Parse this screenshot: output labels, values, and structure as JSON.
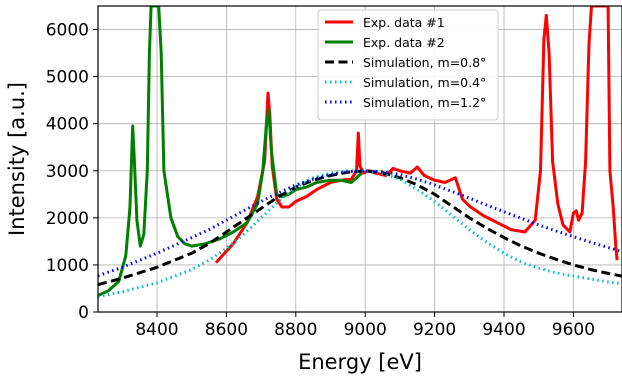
{
  "chart_data": {
    "type": "line",
    "title": "",
    "xlabel": "Energy [eV]",
    "ylabel": "Intensity [a.u.]",
    "xlim": [
      8230,
      9740
    ],
    "ylim": [
      0,
      6500
    ],
    "xticks": [
      8400,
      8600,
      8800,
      9000,
      9200,
      9400,
      9600
    ],
    "yticks": [
      0,
      1000,
      2000,
      3000,
      4000,
      5000,
      6000
    ],
    "grid": true,
    "legend_position": "top-right",
    "series": [
      {
        "name": "Exp. data #1",
        "color": "#ff0000",
        "style": "solid",
        "x": [
          8570,
          8620,
          8660,
          8690,
          8710,
          8720,
          8725,
          8732,
          8745,
          8760,
          8780,
          8800,
          8830,
          8860,
          8900,
          8930,
          8960,
          8975,
          8980,
          8985,
          8995,
          9010,
          9030,
          9060,
          9080,
          9100,
          9130,
          9150,
          9170,
          9200,
          9230,
          9260,
          9280,
          9300,
          9340,
          9380,
          9420,
          9460,
          9490,
          9505,
          9515,
          9522,
          9530,
          9540,
          9555,
          9570,
          9590,
          9600,
          9608,
          9615,
          9625,
          9635,
          9645,
          9652,
          9660,
          9670,
          9680,
          9690,
          9700,
          9705,
          9715,
          9722,
          9726
        ],
        "values": [
          1050,
          1450,
          1900,
          2450,
          3200,
          4650,
          4200,
          3100,
          2400,
          2230,
          2230,
          2350,
          2450,
          2600,
          2750,
          2800,
          2820,
          3000,
          3800,
          3100,
          2950,
          3000,
          2950,
          2900,
          3050,
          3000,
          2950,
          3080,
          2900,
          2800,
          2750,
          2850,
          2400,
          2250,
          2050,
          1900,
          1750,
          1700,
          1950,
          3000,
          5800,
          6300,
          5500,
          3200,
          2300,
          1850,
          1700,
          2100,
          2150,
          1950,
          2100,
          3200,
          5700,
          6500,
          6500,
          6500,
          6500,
          6500,
          6500,
          3000,
          2200,
          1400,
          1100
        ]
      },
      {
        "name": "Exp. data #2",
        "color": "#008000",
        "style": "solid",
        "x": [
          8230,
          8260,
          8290,
          8310,
          8322,
          8330,
          8335,
          8342,
          8352,
          8362,
          8372,
          8378,
          8383,
          8388,
          8405,
          8412,
          8420,
          8440,
          8460,
          8480,
          8500,
          8540,
          8580,
          8620,
          8660,
          8690,
          8705,
          8715,
          8722,
          8730,
          8745,
          8760,
          8780,
          8800,
          8830,
          8860,
          8900,
          8930,
          8960,
          8990
        ],
        "values": [
          350,
          450,
          650,
          1200,
          2200,
          3950,
          3200,
          1950,
          1400,
          1650,
          3000,
          5500,
          6500,
          6500,
          6500,
          5500,
          3000,
          2000,
          1600,
          1450,
          1400,
          1450,
          1550,
          1700,
          1900,
          2300,
          3000,
          3950,
          4300,
          3400,
          2500,
          2450,
          2500,
          2600,
          2650,
          2750,
          2800,
          2800,
          2750,
          2950
        ]
      },
      {
        "name": "Simulation, m=0.8°",
        "color": "#000000",
        "style": "dashed",
        "x": [
          8230,
          8300,
          8400,
          8500,
          8550,
          8600,
          8650,
          8700,
          8750,
          8800,
          8850,
          8900,
          8950,
          9000,
          9050,
          9100,
          9150,
          9200,
          9250,
          9300,
          9350,
          9400,
          9450,
          9500,
          9550,
          9600,
          9650,
          9700,
          9740
        ],
        "values": [
          580,
          720,
          950,
          1250,
          1450,
          1700,
          1950,
          2200,
          2450,
          2650,
          2800,
          2900,
          2970,
          3000,
          2960,
          2850,
          2700,
          2500,
          2250,
          2000,
          1780,
          1580,
          1400,
          1250,
          1120,
          1000,
          900,
          820,
          760
        ]
      },
      {
        "name": "Simulation, m=0.4°",
        "color": "#00bfbf",
        "style": "dotted",
        "x": [
          8230,
          8300,
          8400,
          8500,
          8550,
          8600,
          8650,
          8700,
          8750,
          8800,
          8850,
          8900,
          8950,
          9000,
          9050,
          9100,
          9150,
          9200,
          9250,
          9300,
          9350,
          9400,
          9450,
          9500,
          9550,
          9600,
          9650,
          9700,
          9740
        ],
        "values": [
          330,
          430,
          620,
          900,
          1100,
          1350,
          1650,
          2000,
          2350,
          2650,
          2850,
          2950,
          3000,
          2990,
          2940,
          2820,
          2600,
          2350,
          2050,
          1750,
          1480,
          1250,
          1060,
          930,
          830,
          760,
          700,
          640,
          600
        ]
      },
      {
        "name": "Simulation, m=1.2°",
        "color": "#0000ff",
        "style": "dotted",
        "x": [
          8230,
          8300,
          8400,
          8500,
          8550,
          8600,
          8650,
          8700,
          8750,
          8800,
          8850,
          8900,
          8950,
          9000,
          9050,
          9100,
          9150,
          9200,
          9250,
          9300,
          9350,
          9400,
          9450,
          9500,
          9550,
          9600,
          9650,
          9700,
          9740
        ],
        "values": [
          770,
          950,
          1250,
          1580,
          1750,
          1950,
          2150,
          2350,
          2530,
          2700,
          2820,
          2920,
          2980,
          3000,
          2980,
          2920,
          2820,
          2700,
          2560,
          2420,
          2270,
          2130,
          1990,
          1850,
          1720,
          1600,
          1480,
          1370,
          1280
        ]
      }
    ]
  }
}
